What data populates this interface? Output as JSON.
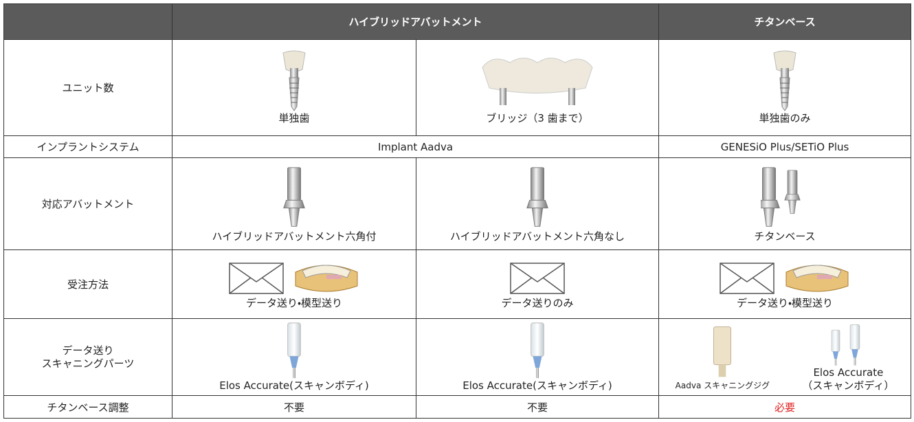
{
  "header": {
    "hybrid": "ハイブリッドアバットメント",
    "titanium": "チタンベース"
  },
  "rows": [
    {
      "label": "ユニット数",
      "cells": [
        "単独歯",
        "ブリッジ（3 歯まで）",
        "単独歯のみ"
      ]
    },
    {
      "label": "インプラントシステム",
      "cells": [
        "Implant Aadva",
        "GENESiO Plus/SETiO Plus"
      ]
    },
    {
      "label": "対応アバットメント",
      "cells": [
        "ハイブリッドアバットメント六角付",
        "ハイブリッドアバットメント六角なし",
        "チタンベース"
      ]
    },
    {
      "label": "受注方法",
      "cells": [
        "データ送り・模型送り",
        "データ送りのみ",
        "データ送り・模型送り"
      ]
    },
    {
      "label": [
        "データ送り",
        "スキャニングパーツ"
      ],
      "cells": [
        "Elos Accurate(スキャンボディ)",
        "Elos Accurate(スキャンボディ)",
        {
          "jig": "Aadva スキャニングジグ",
          "body": [
            "Elos Accurate",
            "（スキャンボディ）"
          ]
        }
      ]
    },
    {
      "label": "チタンベース調整",
      "cells": [
        "不要",
        "不要",
        "必要"
      ]
    }
  ]
}
